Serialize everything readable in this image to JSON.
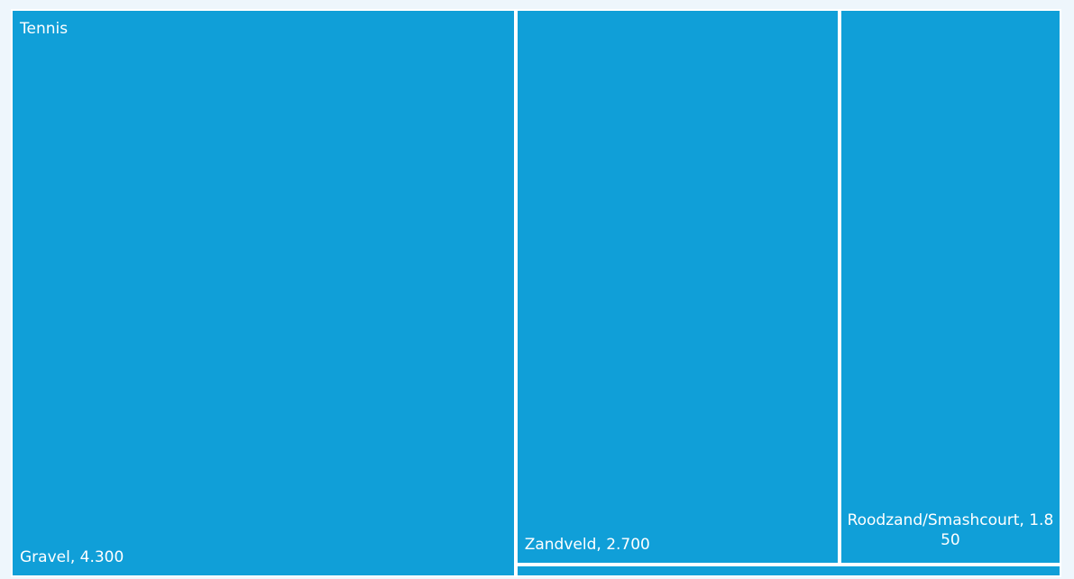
{
  "chart_data": {
    "type": "treemap",
    "group": "Tennis",
    "color": "#109fd8",
    "categories": [
      "Gravel",
      "Zandveld",
      "Roodzand/Smashcourt",
      null
    ],
    "values": [
      4300,
      2700,
      1850,
      100
    ],
    "value_labels": [
      "Gravel, 4.300",
      "Zandveld, 2.700",
      "Roodzand/Smashcourt, 1.850",
      null
    ]
  }
}
